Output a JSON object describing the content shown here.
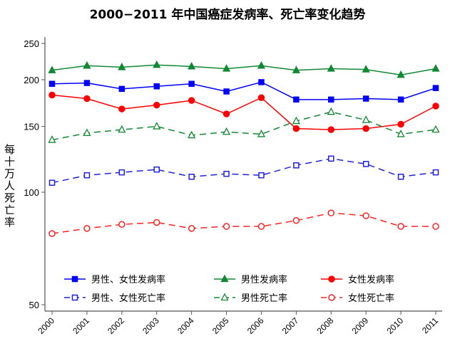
{
  "chart_data": {
    "type": "line",
    "title": "2000−2011 年中国癌症发病率、死亡率变化趋势",
    "xlabel": "",
    "ylabel": "每十万人死亡率",
    "yscale": "log",
    "ylim": [
      50,
      260
    ],
    "yticks": [
      50,
      100,
      150,
      200,
      250
    ],
    "x": [
      "2000",
      "2001",
      "2002",
      "2003",
      "2004",
      "2005",
      "2006",
      "2007",
      "2008",
      "2009",
      "2010",
      "2011"
    ],
    "legend_position": "bottom-inside",
    "series": [
      {
        "name": "男性、女性发病率",
        "color": "#0000ff",
        "marker": "square",
        "filled": true,
        "dashed": false,
        "values": [
          195,
          196,
          189,
          192,
          195,
          186,
          197,
          177,
          177,
          178,
          177,
          190
        ]
      },
      {
        "name": "男性发病率",
        "color": "#118833",
        "marker": "triangle",
        "filled": true,
        "dashed": false,
        "values": [
          212,
          218,
          216,
          219,
          217,
          214,
          218,
          212,
          214,
          213,
          206,
          214
        ]
      },
      {
        "name": "女性发病率",
        "color": "#ff0000",
        "marker": "circle",
        "filled": true,
        "dashed": false,
        "values": [
          182,
          178,
          167,
          171,
          176,
          162,
          179,
          148,
          147,
          148,
          152,
          170
        ]
      },
      {
        "name": "男性、女性死亡率",
        "color": "#2222dd",
        "marker": "square",
        "filled": false,
        "dashed": true,
        "values": [
          106,
          111,
          113,
          115,
          110,
          112,
          111,
          118,
          123,
          119,
          110,
          113
        ]
      },
      {
        "name": "男性死亡率",
        "color": "#118833",
        "marker": "triangle",
        "filled": false,
        "dashed": true,
        "values": [
          138,
          144,
          147,
          150,
          142,
          145,
          143,
          155,
          164,
          156,
          143,
          147
        ]
      },
      {
        "name": "女性死亡率",
        "color": "#ff2222",
        "marker": "circle",
        "filled": false,
        "dashed": true,
        "values": [
          77.5,
          80,
          82,
          83,
          80,
          81,
          81,
          84,
          88,
          86.5,
          81,
          81
        ]
      }
    ]
  }
}
